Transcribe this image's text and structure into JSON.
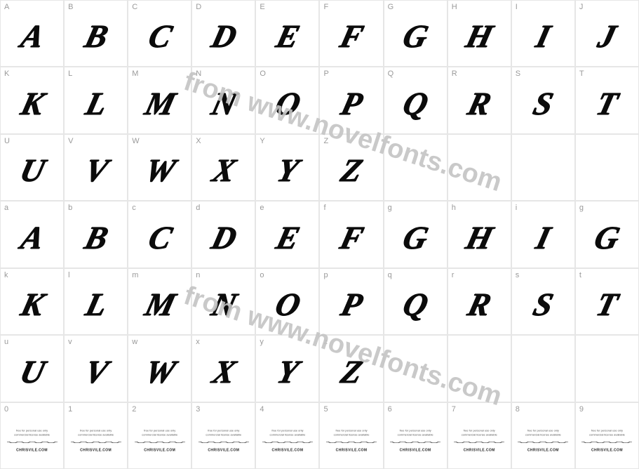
{
  "watermark_text": "from www.novelfonts.com",
  "colors": {
    "background": "#ffffff",
    "cell_border": "#e6e6e6",
    "label_text": "#9a9a9a",
    "glyph_color": "#0b0b0b",
    "watermark_color": "#c4c4c4"
  },
  "rows": [
    [
      {
        "label": "A",
        "glyph": "A"
      },
      {
        "label": "B",
        "glyph": "B"
      },
      {
        "label": "C",
        "glyph": "C"
      },
      {
        "label": "D",
        "glyph": "D"
      },
      {
        "label": "E",
        "glyph": "E"
      },
      {
        "label": "F",
        "glyph": "F"
      },
      {
        "label": "G",
        "glyph": "G"
      },
      {
        "label": "H",
        "glyph": "H"
      },
      {
        "label": "I",
        "glyph": "I"
      },
      {
        "label": "J",
        "glyph": "J"
      }
    ],
    [
      {
        "label": "K",
        "glyph": "K"
      },
      {
        "label": "L",
        "glyph": "L"
      },
      {
        "label": "M",
        "glyph": "M"
      },
      {
        "label": "N",
        "glyph": "N"
      },
      {
        "label": "O",
        "glyph": "O"
      },
      {
        "label": "P",
        "glyph": "P"
      },
      {
        "label": "Q",
        "glyph": "Q"
      },
      {
        "label": "R",
        "glyph": "R"
      },
      {
        "label": "S",
        "glyph": "S"
      },
      {
        "label": "T",
        "glyph": "T"
      }
    ],
    [
      {
        "label": "U",
        "glyph": "U"
      },
      {
        "label": "V",
        "glyph": "V"
      },
      {
        "label": "W",
        "glyph": "W"
      },
      {
        "label": "X",
        "glyph": "X"
      },
      {
        "label": "Y",
        "glyph": "Y"
      },
      {
        "label": "Z",
        "glyph": "Z"
      },
      {
        "label": "",
        "glyph": ""
      },
      {
        "label": "",
        "glyph": ""
      },
      {
        "label": "",
        "glyph": ""
      },
      {
        "label": "",
        "glyph": ""
      }
    ],
    [
      {
        "label": "a",
        "glyph": "A"
      },
      {
        "label": "b",
        "glyph": "B"
      },
      {
        "label": "c",
        "glyph": "C"
      },
      {
        "label": "d",
        "glyph": "D"
      },
      {
        "label": "e",
        "glyph": "E"
      },
      {
        "label": "f",
        "glyph": "F"
      },
      {
        "label": "g",
        "glyph": "G"
      },
      {
        "label": "h",
        "glyph": "H"
      },
      {
        "label": "i",
        "glyph": "I"
      },
      {
        "label": "g",
        "glyph": "G"
      }
    ],
    [
      {
        "label": "k",
        "glyph": "K"
      },
      {
        "label": "l",
        "glyph": "L"
      },
      {
        "label": "m",
        "glyph": "M"
      },
      {
        "label": "n",
        "glyph": "N"
      },
      {
        "label": "o",
        "glyph": "O"
      },
      {
        "label": "p",
        "glyph": "P"
      },
      {
        "label": "q",
        "glyph": "Q"
      },
      {
        "label": "r",
        "glyph": "R"
      },
      {
        "label": "s",
        "glyph": "S"
      },
      {
        "label": "t",
        "glyph": "T"
      }
    ],
    [
      {
        "label": "u",
        "glyph": "U"
      },
      {
        "label": "v",
        "glyph": "V"
      },
      {
        "label": "w",
        "glyph": "W"
      },
      {
        "label": "x",
        "glyph": "X"
      },
      {
        "label": "y",
        "glyph": "Y"
      },
      {
        "label": "z",
        "glyph": "Z"
      },
      {
        "label": "",
        "glyph": ""
      },
      {
        "label": "",
        "glyph": ""
      },
      {
        "label": "",
        "glyph": ""
      },
      {
        "label": "",
        "glyph": ""
      }
    ],
    [
      {
        "label": "0",
        "digit": true
      },
      {
        "label": "1",
        "digit": true
      },
      {
        "label": "2",
        "digit": true
      },
      {
        "label": "3",
        "digit": true
      },
      {
        "label": "4",
        "digit": true
      },
      {
        "label": "5",
        "digit": true
      },
      {
        "label": "6",
        "digit": true
      },
      {
        "label": "7",
        "digit": true
      },
      {
        "label": "8",
        "digit": true
      },
      {
        "label": "9",
        "digit": true
      }
    ]
  ],
  "digit_block": {
    "line1": "free for personal use only",
    "line2": "commercial license available",
    "brand": "CHRISVILE.COM"
  }
}
